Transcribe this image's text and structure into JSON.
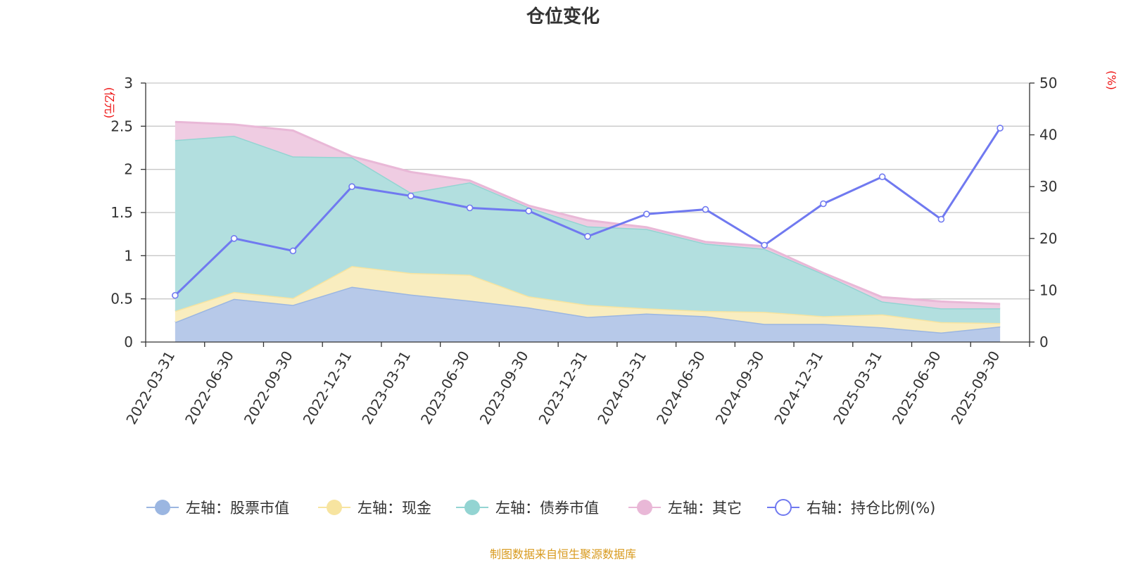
{
  "chart_data": {
    "type": "area",
    "title": "仓位变化",
    "left_axis_unit": "(亿元)",
    "right_axis_unit": "(%)",
    "left_ylim": [
      0,
      3
    ],
    "left_ticks": [
      "0",
      "0.5",
      "1",
      "1.5",
      "2",
      "2.5",
      "3"
    ],
    "right_ylim": [
      0,
      50
    ],
    "right_ticks": [
      "0",
      "10",
      "20",
      "30",
      "40",
      "50"
    ],
    "categories": [
      "2022-03-31",
      "2022-06-30",
      "2022-09-30",
      "2022-12-31",
      "2023-03-31",
      "2023-06-30",
      "2023-09-30",
      "2023-12-31",
      "2024-03-31",
      "2024-06-30",
      "2024-09-30",
      "2024-12-31",
      "2025-03-31",
      "2025-06-30",
      "2025-09-30"
    ],
    "stacked_series": [
      {
        "name": "左轴：股票市值",
        "axis": "left",
        "color": "#9bb6e1",
        "fill": "#b7c9e9",
        "values": [
          0.23,
          0.5,
          0.43,
          0.64,
          0.55,
          0.48,
          0.4,
          0.29,
          0.33,
          0.3,
          0.21,
          0.21,
          0.17,
          0.11,
          0.18
        ]
      },
      {
        "name": "左轴：现金",
        "axis": "left",
        "color": "#f7e4a0",
        "fill": "#f9edbf",
        "values": [
          0.13,
          0.08,
          0.08,
          0.24,
          0.25,
          0.3,
          0.13,
          0.14,
          0.06,
          0.06,
          0.14,
          0.09,
          0.15,
          0.12,
          0.04
        ]
      },
      {
        "name": "左轴：债券市值",
        "axis": "left",
        "color": "#93d4d2",
        "fill": "#b2dfdf",
        "values": [
          1.98,
          1.81,
          1.64,
          1.26,
          0.93,
          1.07,
          1.03,
          0.91,
          0.92,
          0.78,
          0.73,
          0.49,
          0.15,
          0.16,
          0.17
        ]
      },
      {
        "name": "左轴：其它",
        "axis": "left",
        "color": "#e9b8d7",
        "fill": "#efcce2",
        "values": [
          0.21,
          0.13,
          0.3,
          0.01,
          0.24,
          0.02,
          0.02,
          0.07,
          0.02,
          0.02,
          0.03,
          0.01,
          0.05,
          0.08,
          0.05
        ]
      }
    ],
    "line_series": {
      "name": "右轴：持仓比例(%)",
      "axis": "right",
      "color": "#7079f0",
      "values": [
        9.0,
        20.0,
        17.6,
        30.0,
        28.2,
        25.9,
        25.3,
        20.4,
        24.7,
        25.6,
        18.7,
        26.7,
        31.9,
        23.7,
        41.3
      ]
    }
  },
  "source": "制图数据来自恒生聚源数据库",
  "colors": {
    "title": "#333333",
    "axis_unit": "#ee1111",
    "source": "#d89a1e",
    "grid": "#c8c8c8",
    "axis": "#333333"
  }
}
